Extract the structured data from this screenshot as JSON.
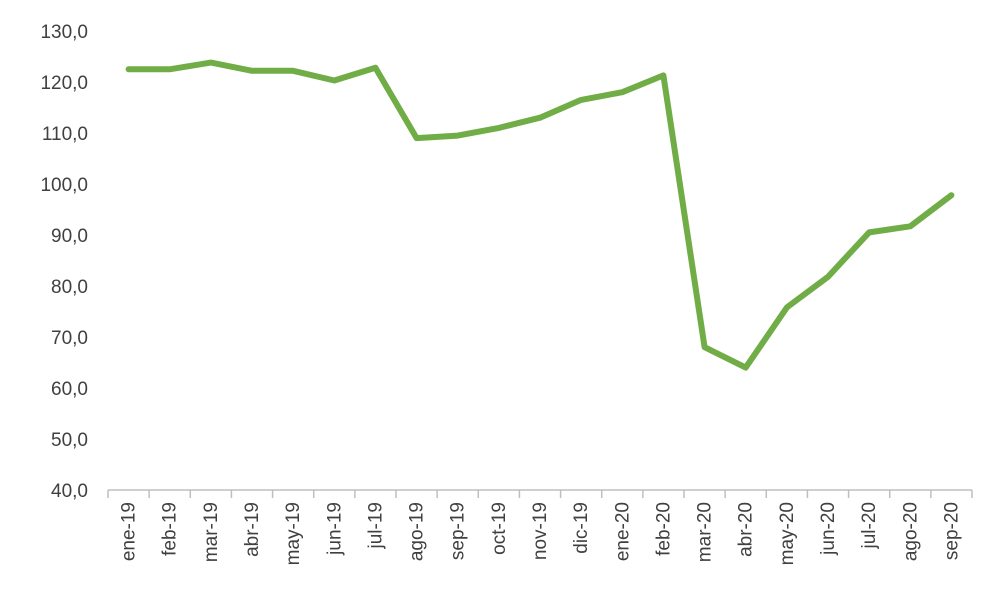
{
  "chart_data": {
    "type": "line",
    "title": "",
    "xlabel": "",
    "ylabel": "",
    "categories": [
      "ene-19",
      "feb-19",
      "mar-19",
      "abr-19",
      "may-19",
      "jun-19",
      "jul-19",
      "ago-19",
      "sep-19",
      "oct-19",
      "nov-19",
      "dic-19",
      "ene-20",
      "feb-20",
      "mar-20",
      "abr-20",
      "may-20",
      "jun-20",
      "jul-20",
      "ago-20",
      "sep-20"
    ],
    "series": [
      {
        "values": [
          122.5,
          122.5,
          123.8,
          122.2,
          122.2,
          120.3,
          122.8,
          109.0,
          109.5,
          111.0,
          113.0,
          116.5,
          118.0,
          121.3,
          68.0,
          64.0,
          75.8,
          81.8,
          90.5,
          91.7,
          97.8
        ],
        "color": "#70ad47"
      }
    ],
    "ylim": [
      40,
      130
    ],
    "yticks": [
      "40,0",
      "50,0",
      "60,0",
      "70,0",
      "80,0",
      "90,0",
      "100,0",
      "110,0",
      "120,0",
      "130,0"
    ],
    "ytick_values": [
      40,
      50,
      60,
      70,
      80,
      90,
      100,
      110,
      120,
      130
    ],
    "grid": false,
    "legend": "none",
    "axis_color": "#bfbfbf",
    "label_color": "#404040"
  }
}
